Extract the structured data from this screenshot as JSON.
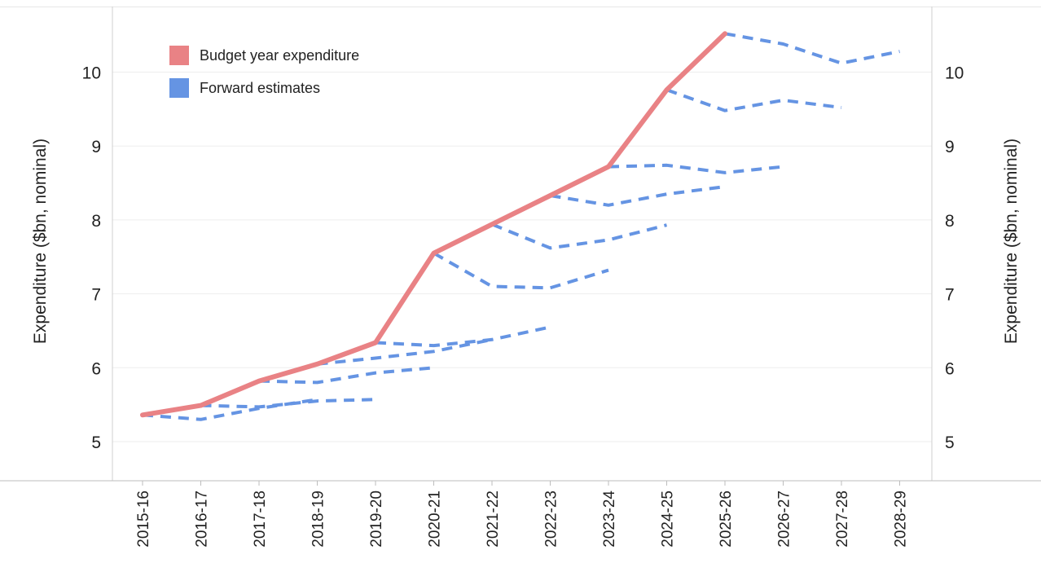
{
  "chart_data": {
    "type": "line",
    "title": "",
    "x": [
      "2015-16",
      "2016-17",
      "2017-18",
      "2018-19",
      "2019-20",
      "2020-21",
      "2021-22",
      "2022-23",
      "2023-24",
      "2024-25",
      "2025-26",
      "2026-27",
      "2027-28",
      "2028-29"
    ],
    "ylabel_left": "Expenditure ($bn, nominal)",
    "ylabel_right": "Expenditure ($bn, nominal)",
    "ylim": [
      4.5,
      11.0
    ],
    "yticks": [
      5,
      6,
      7,
      8,
      9,
      10
    ],
    "grid": true,
    "legend_position": "top-left",
    "legend": [
      {
        "label": "Budget year expenditure",
        "color": "#e98285"
      },
      {
        "label": "Forward estimates",
        "color": "#6594e3"
      }
    ],
    "series": [
      {
        "name": "Budget year expenditure",
        "style": "solid",
        "color": "#e98285",
        "values": [
          5.36,
          5.49,
          5.82,
          6.05,
          6.34,
          7.55,
          7.94,
          8.33,
          8.72,
          9.76,
          10.52,
          null,
          null,
          null
        ]
      },
      {
        "name": "Forward estimates",
        "style": "dashed",
        "color": "#6594e3",
        "lines": [
          {
            "start": "2015-16",
            "values": [
              5.36,
              5.3,
              5.45,
              5.57
            ]
          },
          {
            "start": "2016-17",
            "values": [
              5.49,
              5.47,
              5.55,
              5.57
            ]
          },
          {
            "start": "2017-18",
            "values": [
              5.82,
              5.8,
              5.93,
              6.0
            ]
          },
          {
            "start": "2018-19",
            "values": [
              6.05,
              6.13,
              6.22,
              6.38
            ]
          },
          {
            "start": "2019-20",
            "values": [
              6.34,
              6.3,
              6.38,
              6.55
            ]
          },
          {
            "start": "2020-21",
            "values": [
              7.55,
              7.1,
              7.08,
              7.32
            ]
          },
          {
            "start": "2021-22",
            "values": [
              7.94,
              7.62,
              7.73,
              7.93
            ]
          },
          {
            "start": "2022-23",
            "values": [
              8.33,
              8.2,
              8.35,
              8.45
            ]
          },
          {
            "start": "2023-24",
            "values": [
              8.72,
              8.74,
              8.64,
              8.72
            ]
          },
          {
            "start": "2024-25",
            "values": [
              9.76,
              9.48,
              9.62,
              9.52
            ]
          },
          {
            "start": "2025-26",
            "values": [
              10.52,
              10.38,
              10.12,
              10.28
            ]
          }
        ]
      }
    ]
  }
}
